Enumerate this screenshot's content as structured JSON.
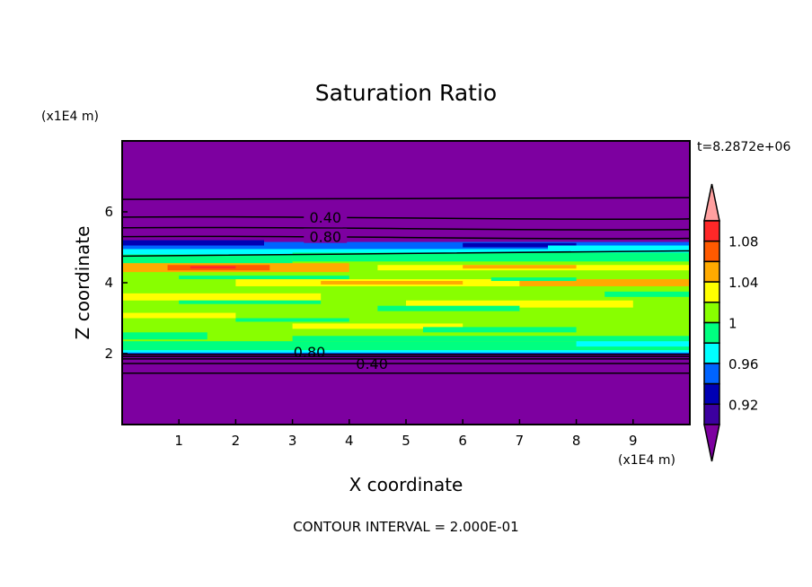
{
  "chart_data": {
    "type": "heatmap",
    "title": "Saturation Ratio",
    "xlabel": "X coordinate",
    "ylabel": "Z coordinate",
    "x_unit": "(x1E4 m)",
    "y_unit": "(x1E4 m)",
    "xlim": [
      0,
      10
    ],
    "ylim": [
      0,
      8
    ],
    "x_ticks": [
      "1",
      "2",
      "3",
      "4",
      "5",
      "6",
      "7",
      "8",
      "9"
    ],
    "y_ticks": [
      "2",
      "4",
      "6"
    ],
    "time_label": "t=8.2872e+06",
    "contour_interval_text": "CONTOUR INTERVAL = 2.000E-01",
    "contour_labels": [
      "0.40",
      "0.80",
      "0.80",
      "0.40"
    ],
    "colorbar": {
      "labels": [
        "1.08",
        "1.04",
        "1",
        "0.96",
        "0.92"
      ],
      "colors_top_to_bottom": [
        "#ffa0a0",
        "#ff2828",
        "#ff5a00",
        "#ffaa00",
        "#ffff00",
        "#88ff00",
        "#00ff80",
        "#00ffff",
        "#0064ff",
        "#0000b4",
        "#3c00a0",
        "#7d00a0"
      ]
    },
    "background_color": "#7d00a0"
  }
}
